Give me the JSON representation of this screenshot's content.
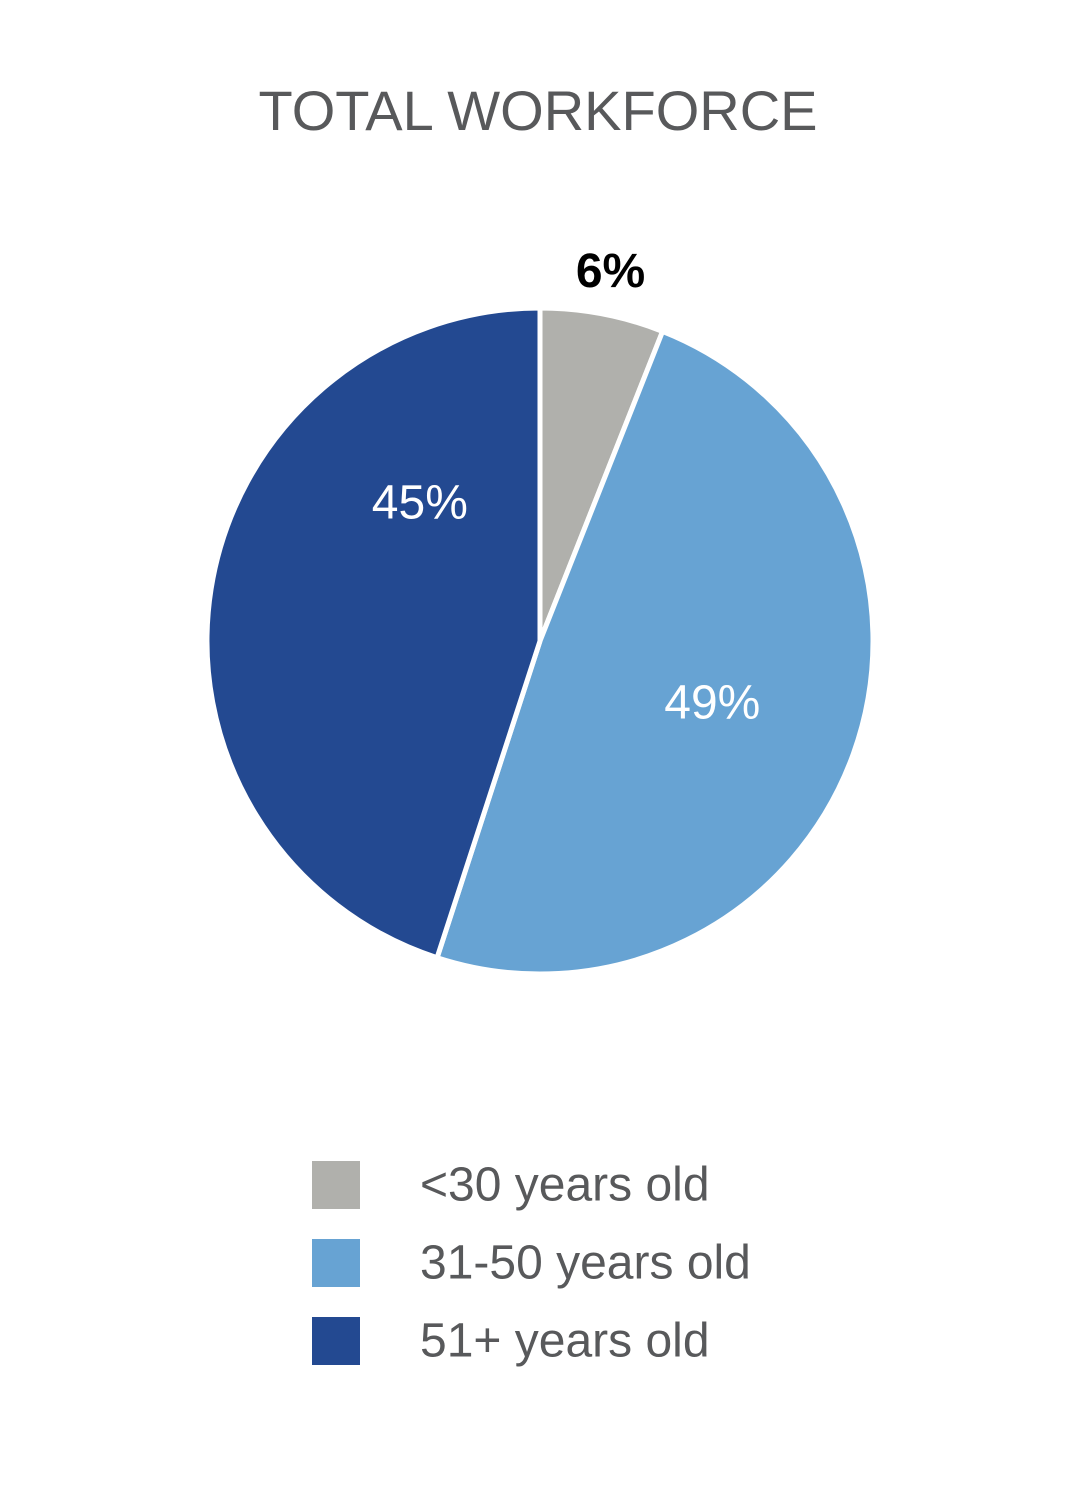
{
  "chart_data": {
    "type": "pie",
    "title": "TOTAL WORKFORCE",
    "categories": [
      "<30 years old",
      "31-50 years old",
      "51+ years old"
    ],
    "values": [
      6,
      49,
      45
    ],
    "data_labels": [
      "6%",
      "49%",
      "45%"
    ],
    "colors": [
      "#b0b0ac",
      "#67a3d3",
      "#234991"
    ],
    "label_colors": [
      "#000000",
      "#ffffff",
      "#ffffff"
    ],
    "legend_position": "bottom",
    "start_angle_deg": 0,
    "direction": "clockwise"
  }
}
